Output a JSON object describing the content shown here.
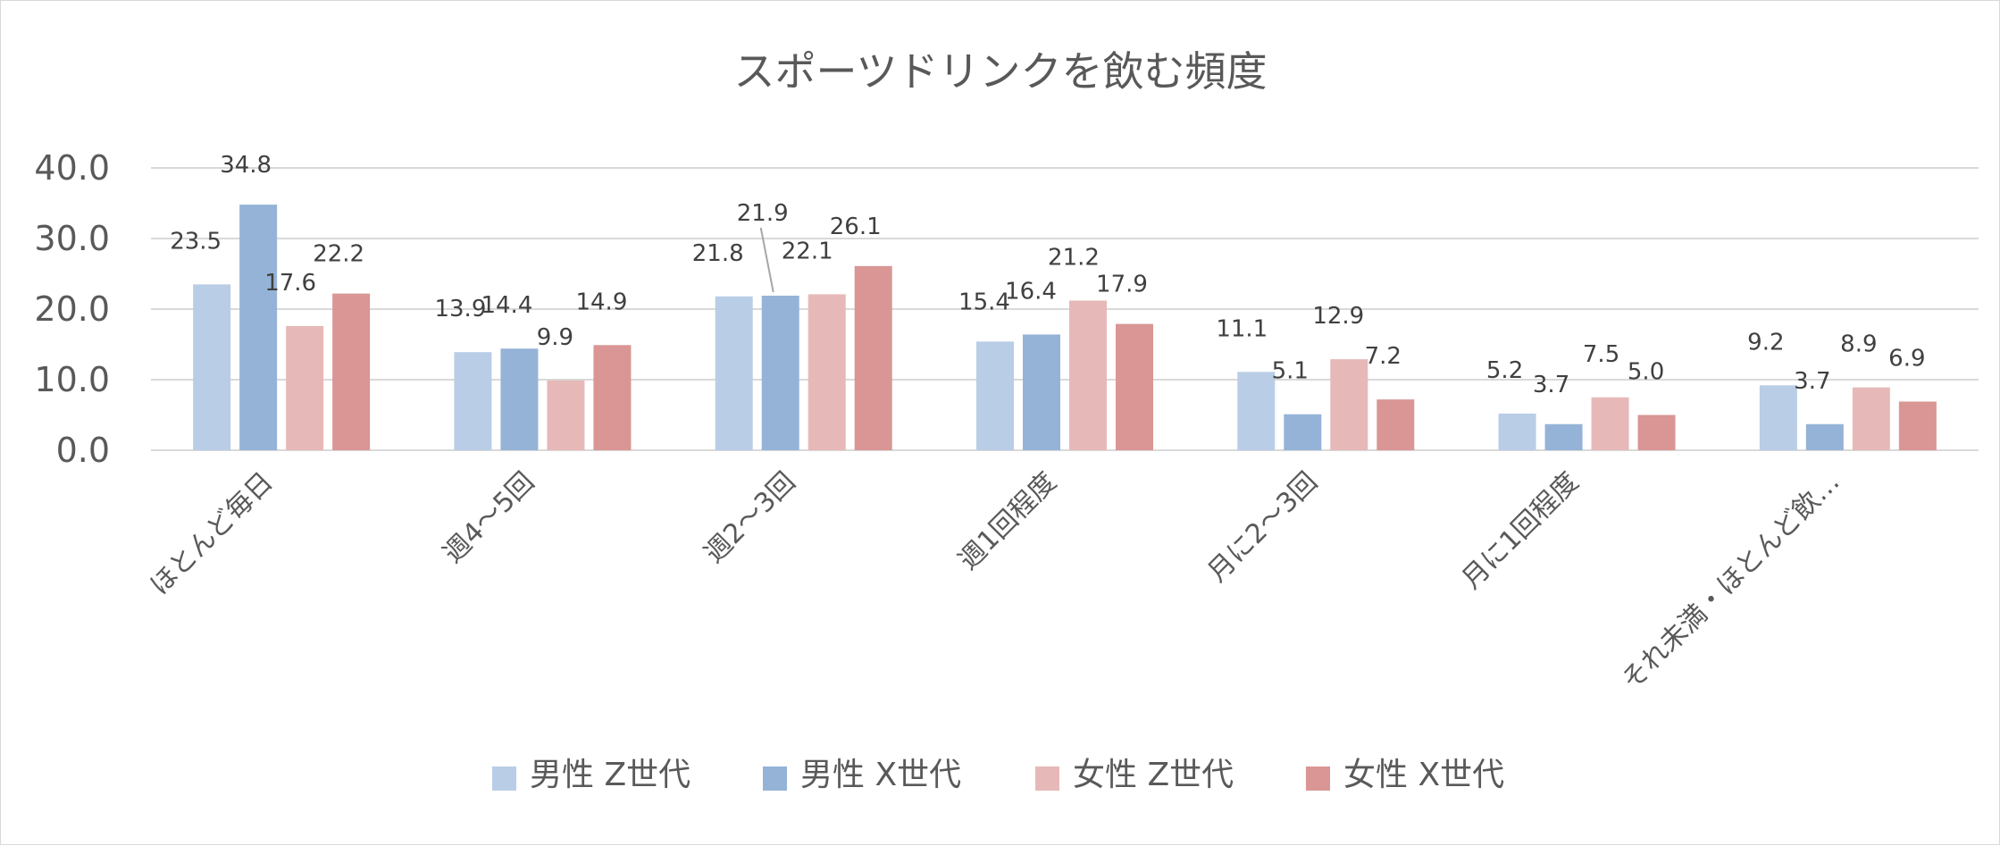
{
  "chart_data": {
    "type": "bar",
    "title": "スポーツドリンクを飲む頻度",
    "xlabel": "",
    "ylabel": "",
    "ylim": [
      0,
      40
    ],
    "yticks": [
      "0.0",
      "10.0",
      "20.0",
      "30.0",
      "40.0"
    ],
    "ytick_values": [
      0,
      10,
      20,
      30,
      40
    ],
    "grid": true,
    "legend_position": "bottom",
    "categories": [
      "ほとんど毎日",
      "週4～5回",
      "週2～3回",
      "週1回程度",
      "月に2～3回",
      "月に1回程度",
      "それ未満・ほとんど飲…"
    ],
    "series": [
      {
        "name": "男性 Z世代",
        "color": "#b9cde6",
        "values": [
          23.5,
          13.9,
          21.8,
          15.4,
          11.1,
          5.2,
          9.2
        ],
        "labels": [
          "23.5",
          "13.9",
          "21.8",
          "15.4",
          "11.1",
          "5.2",
          "9.2"
        ]
      },
      {
        "name": "男性 X世代",
        "color": "#95b3d7",
        "values": [
          34.8,
          14.4,
          21.9,
          16.4,
          5.1,
          3.7,
          3.7
        ],
        "labels": [
          "34.8",
          "14.4",
          "21.9",
          "16.4",
          "5.1",
          "3.7",
          "3.7"
        ]
      },
      {
        "name": "女性 Z世代",
        "color": "#e6b9b8",
        "values": [
          17.6,
          9.9,
          22.1,
          21.2,
          12.9,
          7.5,
          8.9
        ],
        "labels": [
          "17.6",
          "9.9",
          "22.1",
          "21.2",
          "12.9",
          "7.5",
          "8.9"
        ]
      },
      {
        "name": "女性 X世代",
        "color": "#d99694",
        "values": [
          22.2,
          14.9,
          26.1,
          17.9,
          7.2,
          5.0,
          6.9
        ],
        "labels": [
          "22.2",
          "14.9",
          "26.1",
          "17.9",
          "7.2",
          "5.0",
          "6.9"
        ]
      }
    ]
  }
}
